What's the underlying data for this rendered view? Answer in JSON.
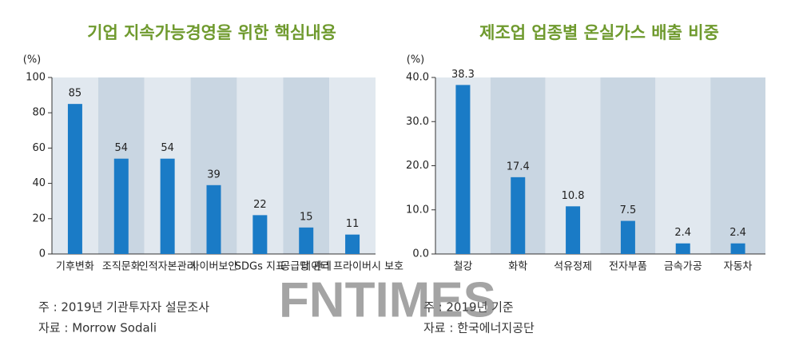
{
  "chart_data": [
    {
      "type": "bar",
      "title": "기업 지속가능경영을 위한 핵심내용",
      "y_label": "(%)",
      "categories": [
        "기후변화",
        "조직문화",
        "인적자본관리",
        "사이버보안",
        "SDGs 지표",
        "공급망 관리",
        "데이터 프라이버시 보호"
      ],
      "values": [
        85,
        54,
        54,
        39,
        22,
        15,
        11
      ],
      "color": "#1a7bc6",
      "ylim": [
        0,
        100
      ],
      "yticks": [
        0,
        20,
        40,
        60,
        80,
        100
      ],
      "notes": [
        "주 : 2019년 기관투자자 설문조사",
        "자료 : Morrow Sodali"
      ]
    },
    {
      "type": "bar",
      "title": "제조업 업종별 온실가스 배출 비중",
      "y_label": "(%)",
      "categories": [
        "철강",
        "화학",
        "석유정제",
        "전자부품",
        "금속가공",
        "자동차"
      ],
      "values": [
        38.3,
        17.4,
        10.8,
        7.5,
        2.4,
        2.4
      ],
      "color": "#1a7bc6",
      "ylim": [
        0,
        40
      ],
      "yticks": [
        {
          "value": 0,
          "label": "0.0"
        },
        {
          "value": 10,
          "label": "10.0"
        },
        {
          "value": 20,
          "label": "20.0"
        },
        {
          "value": 30,
          "label": "30.0"
        },
        {
          "value": 40,
          "label": "40.0"
        }
      ],
      "notes": [
        "주 : 2019년 기준",
        "자료 : 한국에너지공단"
      ]
    }
  ],
  "watermark": "FNTIMES"
}
